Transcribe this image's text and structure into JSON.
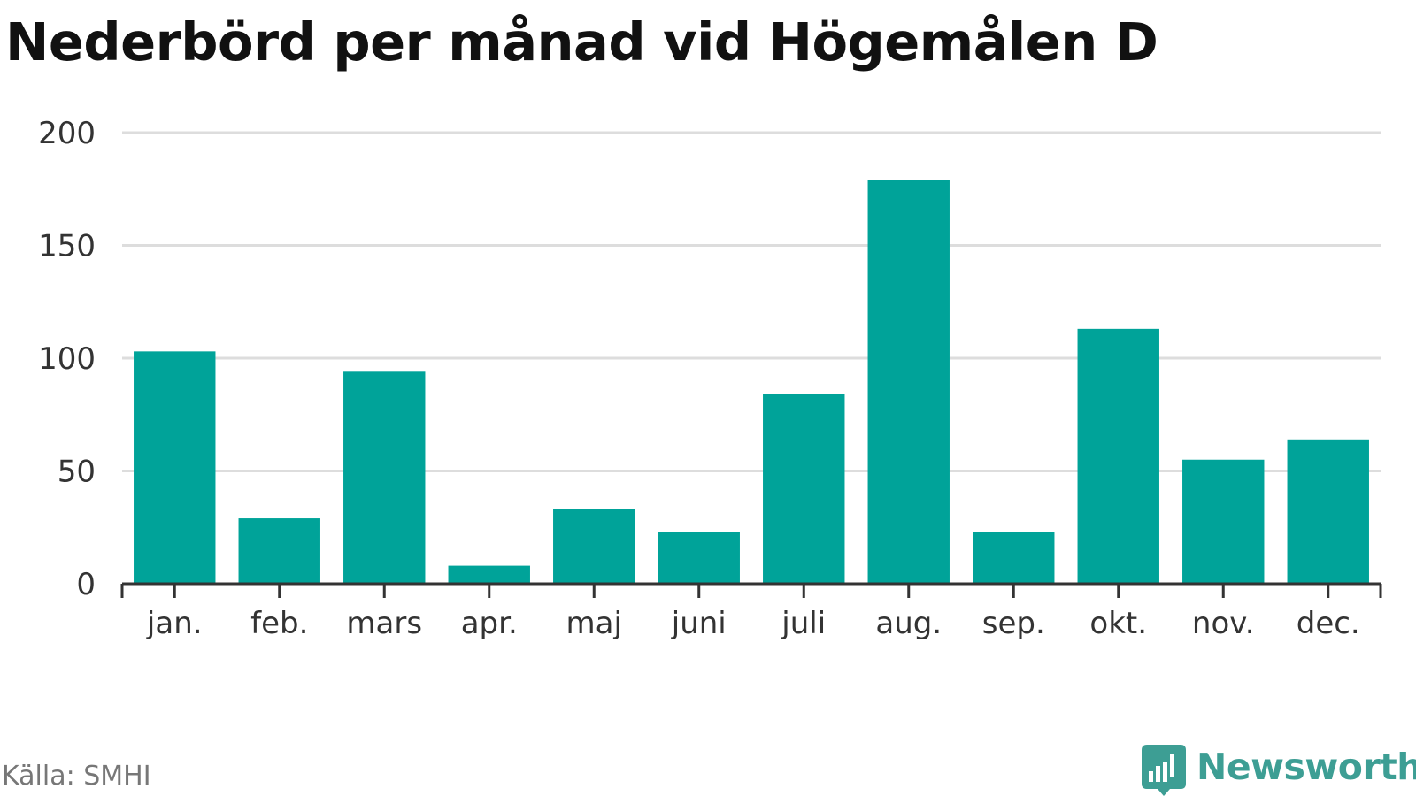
{
  "title": "Nederbörd per månad vid Högemålen D",
  "source": "Källa: SMHI",
  "brand": {
    "name": "Newsworthy",
    "icon": "bar-chart-logo-icon",
    "color": "#3d9e94"
  },
  "colors": {
    "bar": "#00a399",
    "grid": "#dddddd",
    "axis": "#333333"
  },
  "chart_data": {
    "type": "bar",
    "categories": [
      "jan.",
      "feb.",
      "mars",
      "apr.",
      "maj",
      "juni",
      "juli",
      "aug.",
      "sep.",
      "okt.",
      "nov.",
      "dec."
    ],
    "values": [
      103,
      29,
      94,
      8,
      33,
      23,
      84,
      179,
      23,
      113,
      55,
      64
    ],
    "xlabel": "",
    "ylabel": "",
    "ylim": [
      0,
      200
    ],
    "yticks": [
      0,
      50,
      100,
      150,
      200
    ],
    "grid": true,
    "legend": false
  }
}
